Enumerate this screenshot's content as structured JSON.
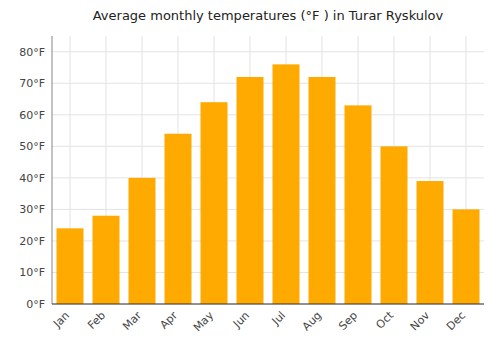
{
  "chart_data": {
    "type": "bar",
    "title": "Average monthly temperatures (°F ) in Turar Ryskulov",
    "categories": [
      "Jan",
      "Feb",
      "Mar",
      "Apr",
      "May",
      "Jun",
      "Jul",
      "Aug",
      "Sep",
      "Oct",
      "Nov",
      "Dec"
    ],
    "values": [
      24,
      28,
      40,
      54,
      64,
      72,
      76,
      72,
      63,
      50,
      39,
      30
    ],
    "color": "#FFAA00",
    "ylim": [
      0,
      85
    ],
    "yticks": [
      {
        "value": 0,
        "label": "0°F"
      },
      {
        "value": 10,
        "label": "10°F"
      },
      {
        "value": 20,
        "label": "20°F"
      },
      {
        "value": 30,
        "label": "30°F"
      },
      {
        "value": 40,
        "label": "40°F"
      },
      {
        "value": 50,
        "label": "50°F"
      },
      {
        "value": 60,
        "label": "60°F"
      },
      {
        "value": 70,
        "label": "70°F"
      },
      {
        "value": 80,
        "label": "80°F"
      }
    ],
    "grid": true
  }
}
